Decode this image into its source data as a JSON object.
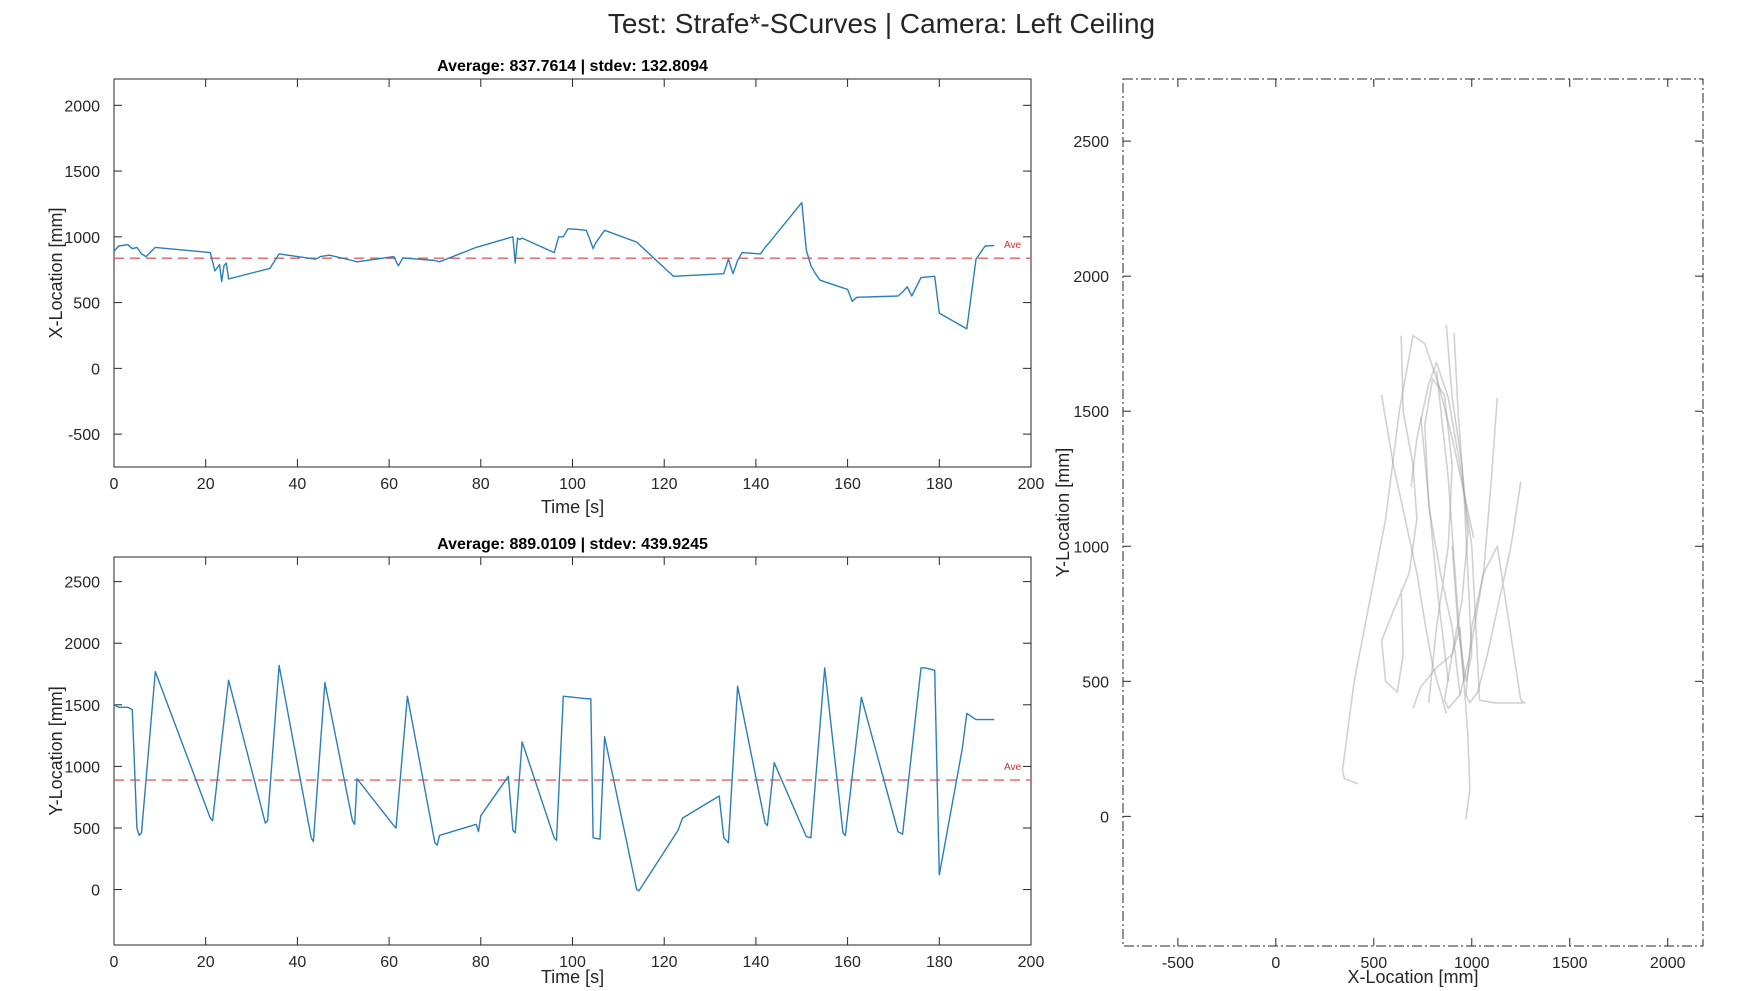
{
  "figure": {
    "title": "Test: Strafe*-SCurves  |  Camera: Left Ceiling"
  },
  "colors": {
    "series": "#2a7fb8",
    "average": "#e06060",
    "average_label": "#d03030",
    "trajectory": "#9a9a9a",
    "axes": "#262626"
  },
  "chart_data": [
    {
      "id": "x-vs-time",
      "type": "line",
      "title": "Average: 837.7614  |  stdev: 132.8094",
      "xlabel": "Time [s]",
      "ylabel": "X-Location [mm]",
      "xlim": [
        0,
        200
      ],
      "ylim": [
        -750,
        2200
      ],
      "xticks": [
        0,
        20,
        40,
        60,
        80,
        100,
        120,
        140,
        160,
        180,
        200
      ],
      "yticks": [
        -500,
        0,
        500,
        1000,
        1500,
        2000
      ],
      "average": 837.7614,
      "average_label": "Ave",
      "series": [
        {
          "x": [
            0,
            1,
            3,
            4,
            5,
            6,
            7,
            9,
            21,
            22,
            23,
            23.5,
            24,
            24.5,
            25,
            34,
            36,
            44,
            45,
            47,
            52,
            53,
            61,
            62,
            63,
            70,
            71,
            79,
            86,
            87,
            87.5,
            88,
            88.5,
            89,
            96,
            97,
            98,
            99,
            100,
            103,
            104,
            104.5,
            105,
            107,
            114,
            122,
            133,
            134,
            135,
            136,
            137,
            141,
            142,
            143,
            150,
            151,
            152,
            153,
            154,
            160,
            161,
            162,
            171,
            172,
            173,
            174,
            176,
            179,
            180,
            186,
            188,
            190,
            192
          ],
          "y": [
            890,
            930,
            940,
            910,
            920,
            870,
            850,
            920,
            880,
            740,
            790,
            660,
            780,
            800,
            680,
            760,
            870,
            830,
            850,
            860,
            820,
            810,
            850,
            780,
            840,
            820,
            810,
            920,
            990,
            1000,
            800,
            990,
            980,
            990,
            880,
            1000,
            1000,
            1060,
            1060,
            1050,
            960,
            910,
            950,
            1050,
            960,
            700,
            720,
            830,
            720,
            820,
            880,
            870,
            920,
            960,
            1260,
            900,
            780,
            720,
            670,
            600,
            510,
            540,
            550,
            580,
            620,
            550,
            690,
            700,
            420,
            300,
            830,
            930,
            935
          ]
        }
      ]
    },
    {
      "id": "y-vs-time",
      "type": "line",
      "title": "Average: 889.0109  |  stdev: 439.9245",
      "xlabel": "Time [s]",
      "ylabel": "Y-Location [mm]",
      "xlim": [
        0,
        200
      ],
      "ylim": [
        -450,
        2700
      ],
      "xticks": [
        0,
        20,
        40,
        60,
        80,
        100,
        120,
        140,
        160,
        180,
        200
      ],
      "yticks": [
        0,
        500,
        1000,
        1500,
        2000,
        2500
      ],
      "average": 889.0109,
      "average_label": "Ave",
      "series": [
        {
          "x": [
            0,
            1,
            3,
            4,
            5,
            5.5,
            6,
            9,
            21,
            21.5,
            25,
            33,
            33.5,
            36,
            43,
            43.5,
            46,
            52,
            52.5,
            53,
            61,
            61.5,
            64,
            70,
            70.5,
            71,
            79,
            79.5,
            80,
            86,
            87,
            87.5,
            89,
            96,
            96.5,
            98,
            103,
            104,
            104.5,
            106,
            107,
            114,
            114.5,
            123,
            124,
            132,
            133,
            134,
            136,
            142,
            142.5,
            144,
            151,
            152,
            155,
            159,
            159.5,
            163,
            171,
            172,
            176,
            177,
            179,
            180,
            185,
            186,
            188,
            192
          ],
          "y": [
            1500,
            1480,
            1480,
            1460,
            500,
            440,
            460,
            1770,
            580,
            560,
            1700,
            540,
            560,
            1820,
            420,
            390,
            1680,
            560,
            530,
            900,
            520,
            500,
            1570,
            380,
            360,
            440,
            530,
            470,
            600,
            920,
            480,
            460,
            1200,
            420,
            400,
            1570,
            1550,
            1550,
            420,
            410,
            1240,
            0,
            -10,
            480,
            580,
            760,
            420,
            380,
            1650,
            540,
            520,
            1030,
            430,
            420,
            1800,
            460,
            440,
            1560,
            470,
            450,
            1800,
            1800,
            1780,
            120,
            1140,
            1430,
            1380,
            1380
          ]
        }
      ]
    },
    {
      "id": "trajectory",
      "type": "line",
      "xlabel": "X-Location [mm]",
      "ylabel": "Y-Location [mm]",
      "xlim": [
        -780,
        2180
      ],
      "ylim": [
        -480,
        2730
      ],
      "xticks": [
        -500,
        0,
        500,
        1000,
        1500,
        2000
      ],
      "yticks": [
        0,
        500,
        1000,
        1500,
        2000,
        2500
      ],
      "series": [
        {
          "x": [
            1010,
            960,
            900,
            830,
            760,
            700,
            630,
            560,
            480,
            400,
            340,
            350,
            420
          ],
          "y": [
            1030,
            1200,
            1400,
            1600,
            1750,
            1780,
            1500,
            1100,
            800,
            500,
            170,
            140,
            120
          ]
        },
        {
          "x": [
            640,
            650,
            700,
            720,
            680,
            600,
            540,
            560,
            620,
            650,
            640
          ],
          "y": [
            1780,
            1500,
            1300,
            1100,
            900,
            760,
            650,
            500,
            460,
            600,
            840
          ]
        },
        {
          "x": [
            780,
            820,
            880,
            900,
            860,
            800,
            760,
            780,
            840,
            900,
            940
          ],
          "y": [
            420,
            700,
            1000,
            1300,
            1560,
            1620,
            1450,
            1150,
            900,
            700,
            450
          ]
        },
        {
          "x": [
            870,
            900,
            950,
            980,
            950,
            900,
            860,
            880,
            940,
            990,
            1060,
            1100,
            1130
          ],
          "y": [
            1820,
            1550,
            1300,
            1050,
            800,
            600,
            430,
            400,
            450,
            600,
            900,
            1250,
            1550
          ]
        },
        {
          "x": [
            1250,
            1200,
            1140,
            1080,
            1030,
            990,
            970,
            1000,
            1060,
            1130,
            1250,
            1270,
            1200,
            1120,
            1040
          ],
          "y": [
            1240,
            1000,
            800,
            600,
            460,
            420,
            450,
            700,
            900,
            1000,
            430,
            420,
            420,
            420,
            430
          ]
        },
        {
          "x": [
            1040,
            1000,
            940,
            880,
            820,
            780,
            720,
            690
          ],
          "y": [
            430,
            1000,
            1300,
            1550,
            1680,
            1600,
            1400,
            1220
          ]
        },
        {
          "x": [
            700,
            740,
            820,
            900,
            940,
            960,
            980,
            990,
            970
          ],
          "y": [
            400,
            480,
            550,
            600,
            700,
            500,
            300,
            100,
            -10
          ]
        },
        {
          "x": [
            540,
            600,
            660,
            720,
            760,
            800,
            840,
            870
          ],
          "y": [
            1560,
            1300,
            1100,
            900,
            720,
            560,
            460,
            380
          ]
        },
        {
          "x": [
            910,
            930,
            960,
            980,
            1000,
            970,
            930,
            900
          ],
          "y": [
            1790,
            1500,
            1200,
            900,
            600,
            500,
            700,
            1000
          ]
        },
        {
          "x": [
            820,
            850,
            880,
            900,
            920,
            940,
            960
          ],
          "y": [
            1650,
            1450,
            1250,
            1050,
            850,
            650,
            500
          ]
        },
        {
          "x": [
            740,
            770,
            800,
            830,
            860,
            880
          ],
          "y": [
            1480,
            1250,
            1020,
            800,
            620,
            500
          ]
        }
      ]
    }
  ]
}
